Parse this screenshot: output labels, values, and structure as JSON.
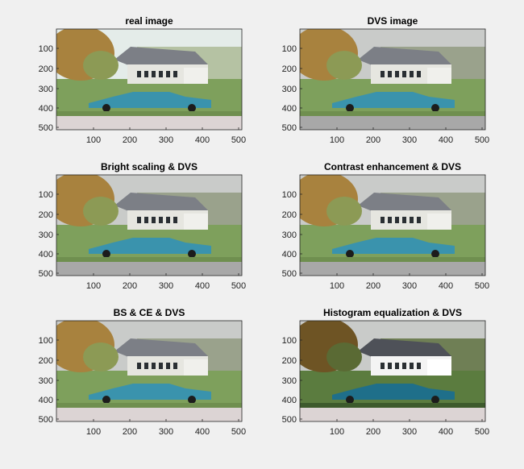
{
  "figure": {
    "background": "#f0f0f0",
    "panels": [
      {
        "title": "real image",
        "variant": "real",
        "x_ticks": [
          "100",
          "200",
          "300",
          "400",
          "500"
        ],
        "y_ticks": [
          "100",
          "200",
          "300",
          "400",
          "500"
        ]
      },
      {
        "title": "DVS image",
        "variant": "dvs",
        "x_ticks": [
          "100",
          "200",
          "300",
          "400",
          "500"
        ],
        "y_ticks": [
          "100",
          "200",
          "300",
          "400",
          "500"
        ]
      },
      {
        "title": "Bright scaling & DVS",
        "variant": "bs",
        "x_ticks": [
          "100",
          "200",
          "300",
          "400",
          "500"
        ],
        "y_ticks": [
          "100",
          "200",
          "300",
          "400",
          "500"
        ]
      },
      {
        "title": "Contrast enhancement & DVS",
        "variant": "ce",
        "x_ticks": [
          "100",
          "200",
          "300",
          "400",
          "500"
        ],
        "y_ticks": [
          "100",
          "200",
          "300",
          "400",
          "500"
        ]
      },
      {
        "title": "BS & CE & DVS",
        "variant": "bsce",
        "x_ticks": [
          "100",
          "200",
          "300",
          "400",
          "500"
        ],
        "y_ticks": [
          "100",
          "200",
          "300",
          "400",
          "500"
        ]
      },
      {
        "title": "Histogram equalization & DVS",
        "variant": "he",
        "x_ticks": [
          "100",
          "200",
          "300",
          "400",
          "500"
        ],
        "y_ticks": [
          "100",
          "200",
          "300",
          "400",
          "500"
        ]
      }
    ]
  },
  "colors": {
    "sky_real": "#e4ece9",
    "sky_gray": "#c9cbc9",
    "grass": "#7ea05c",
    "grass_dark": "#5b7c3f",
    "house": "#e6e6e0",
    "roof": "#7c7f86",
    "tree": "#a8823e",
    "car": "#3a93ad",
    "bottom_real": "#dcd4d4",
    "bottom_gray": "#a8a8a8",
    "axis": "#262626"
  }
}
